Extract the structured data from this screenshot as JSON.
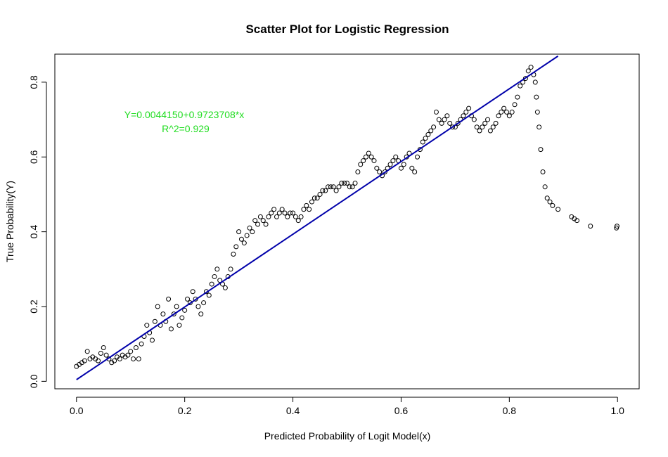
{
  "chart_data": {
    "type": "scatter",
    "title": "Scatter Plot for Logistic Regression",
    "xlabel": "Predicted Probability of Logit Model(x)",
    "ylabel": "True Probability(Y)",
    "xlim": [
      -0.04,
      1.04
    ],
    "ylim": [
      -0.02,
      0.875
    ],
    "xticks": [
      0.0,
      0.2,
      0.4,
      0.6,
      0.8,
      1.0
    ],
    "xtick_labels": [
      "0.0",
      "0.2",
      "0.4",
      "0.6",
      "0.8",
      "1.0"
    ],
    "yticks": [
      0.0,
      0.2,
      0.4,
      0.6,
      0.8
    ],
    "ytick_labels": [
      "0.0",
      "0.2",
      "0.4",
      "0.6",
      "0.8"
    ],
    "grid": false,
    "point_color": "#000000",
    "line_color": "#0000AA",
    "annotation_color": "#22DD22",
    "annotations": [
      "Y=0.0044150+0.9723708*x",
      "R^2=0.929"
    ],
    "fit_line": {
      "intercept": 0.004415,
      "slope": 0.9723708,
      "x_range": [
        0.0,
        0.89
      ]
    },
    "series": [
      {
        "x": [
          0.0,
          0.005,
          0.01,
          0.015,
          0.02,
          0.025,
          0.03,
          0.035,
          0.04,
          0.045,
          0.05,
          0.055,
          0.06,
          0.065,
          0.07,
          0.075,
          0.08,
          0.085,
          0.09,
          0.095,
          0.1,
          0.105,
          0.11,
          0.115,
          0.12,
          0.125,
          0.13,
          0.135,
          0.14,
          0.145,
          0.15,
          0.155,
          0.16,
          0.165,
          0.17,
          0.175,
          0.18,
          0.185,
          0.19,
          0.195,
          0.2,
          0.205,
          0.21,
          0.215,
          0.22,
          0.225,
          0.23,
          0.235,
          0.24,
          0.245,
          0.25,
          0.255,
          0.26,
          0.265,
          0.27,
          0.275,
          0.28,
          0.285,
          0.29,
          0.295,
          0.3,
          0.305,
          0.31,
          0.315,
          0.32,
          0.325,
          0.33,
          0.335,
          0.34,
          0.345,
          0.35,
          0.355,
          0.36,
          0.365,
          0.37,
          0.375,
          0.38,
          0.385,
          0.39,
          0.395,
          0.4,
          0.405,
          0.41,
          0.415,
          0.42,
          0.425,
          0.43,
          0.435,
          0.44,
          0.445,
          0.45,
          0.455,
          0.46,
          0.465,
          0.47,
          0.475,
          0.48,
          0.485,
          0.49,
          0.495,
          0.5,
          0.505,
          0.51,
          0.515,
          0.52,
          0.525,
          0.53,
          0.535,
          0.54,
          0.545,
          0.55,
          0.555,
          0.56,
          0.565,
          0.57,
          0.575,
          0.58,
          0.585,
          0.59,
          0.595,
          0.6,
          0.605,
          0.61,
          0.615,
          0.62,
          0.625,
          0.63,
          0.635,
          0.64,
          0.645,
          0.65,
          0.655,
          0.66,
          0.665,
          0.67,
          0.675,
          0.68,
          0.685,
          0.69,
          0.695,
          0.7,
          0.705,
          0.71,
          0.715,
          0.72,
          0.725,
          0.73,
          0.735,
          0.74,
          0.745,
          0.75,
          0.755,
          0.76,
          0.765,
          0.77,
          0.775,
          0.78,
          0.785,
          0.79,
          0.795,
          0.8,
          0.805,
          0.81,
          0.815,
          0.82,
          0.825,
          0.83,
          0.835,
          0.84,
          0.845,
          0.848,
          0.85,
          0.852,
          0.855,
          0.858,
          0.862,
          0.866,
          0.87,
          0.875,
          0.88,
          0.89,
          0.915,
          0.92,
          0.925,
          0.95,
          0.998,
          0.999
        ],
        "y": [
          0.04,
          0.045,
          0.05,
          0.055,
          0.08,
          0.06,
          0.065,
          0.06,
          0.055,
          0.075,
          0.09,
          0.07,
          0.06,
          0.05,
          0.055,
          0.065,
          0.06,
          0.07,
          0.065,
          0.07,
          0.08,
          0.06,
          0.09,
          0.06,
          0.1,
          0.12,
          0.15,
          0.13,
          0.11,
          0.16,
          0.2,
          0.15,
          0.18,
          0.16,
          0.22,
          0.14,
          0.18,
          0.2,
          0.15,
          0.17,
          0.19,
          0.22,
          0.21,
          0.24,
          0.22,
          0.2,
          0.18,
          0.21,
          0.24,
          0.23,
          0.26,
          0.28,
          0.3,
          0.27,
          0.26,
          0.25,
          0.28,
          0.3,
          0.34,
          0.36,
          0.4,
          0.38,
          0.37,
          0.39,
          0.41,
          0.4,
          0.43,
          0.42,
          0.44,
          0.43,
          0.42,
          0.44,
          0.45,
          0.46,
          0.44,
          0.45,
          0.46,
          0.45,
          0.44,
          0.45,
          0.45,
          0.44,
          0.43,
          0.44,
          0.46,
          0.47,
          0.46,
          0.48,
          0.49,
          0.49,
          0.5,
          0.51,
          0.51,
          0.52,
          0.52,
          0.52,
          0.51,
          0.52,
          0.53,
          0.53,
          0.53,
          0.52,
          0.52,
          0.53,
          0.56,
          0.58,
          0.59,
          0.6,
          0.61,
          0.6,
          0.59,
          0.57,
          0.56,
          0.55,
          0.56,
          0.57,
          0.58,
          0.59,
          0.6,
          0.59,
          0.57,
          0.58,
          0.6,
          0.61,
          0.57,
          0.56,
          0.6,
          0.62,
          0.64,
          0.65,
          0.66,
          0.67,
          0.68,
          0.72,
          0.7,
          0.69,
          0.7,
          0.71,
          0.69,
          0.68,
          0.68,
          0.69,
          0.7,
          0.71,
          0.72,
          0.73,
          0.71,
          0.7,
          0.68,
          0.67,
          0.68,
          0.69,
          0.7,
          0.67,
          0.68,
          0.69,
          0.71,
          0.72,
          0.73,
          0.72,
          0.71,
          0.72,
          0.74,
          0.76,
          0.79,
          0.8,
          0.81,
          0.83,
          0.84,
          0.82,
          0.8,
          0.76,
          0.72,
          0.68,
          0.62,
          0.56,
          0.52,
          0.49,
          0.48,
          0.47,
          0.46,
          0.44,
          0.435,
          0.43,
          0.415,
          0.41,
          0.415
        ]
      }
    ]
  }
}
